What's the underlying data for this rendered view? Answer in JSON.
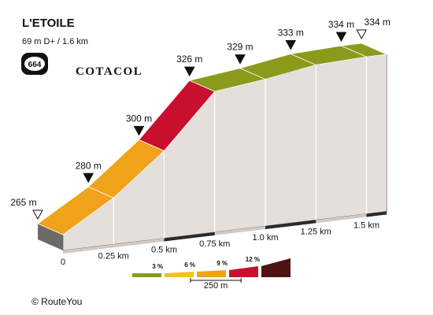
{
  "chart_data": {
    "type": "profile",
    "title": "L'ETOILE",
    "subtitle": "69 m D+ / 1.6 km",
    "badge": "664",
    "brand": "COTACOL",
    "footer": "© RouteYou",
    "x": [
      0,
      0.25,
      0.5,
      0.75,
      1,
      1.25,
      1.5,
      1.6
    ],
    "values": [
      265,
      280,
      300,
      326,
      329,
      333,
      334,
      334
    ],
    "value_labels": [
      "265 m",
      "280 m",
      "300 m",
      "326 m",
      "329 m",
      "333 m",
      "334 m",
      "334 m"
    ],
    "ylim": [
      260,
      340
    ],
    "xlim": [
      0,
      1.6
    ],
    "xticks": [
      0,
      {
        "value": 0.25,
        "label": "0.25 km"
      },
      {
        "value": 0.5,
        "label": "0.5 km"
      },
      {
        "value": 0.75,
        "label": "0.75 km"
      },
      {
        "value": 1,
        "label": "1.0 km"
      },
      {
        "value": 1.25,
        "label": "1.25 km"
      },
      {
        "value": 1.5,
        "label": "1.5 km"
      }
    ],
    "legend": {
      "colors": [
        "#8c9a1b",
        "#f2c21b",
        "#f0a31a",
        "#c8102e",
        "#4e1414"
      ],
      "thresholds": [
        {
          "value": 3,
          "label": "3 %"
        },
        {
          "value": 6,
          "label": "6 %"
        },
        {
          "value": 9,
          "label": "9 %"
        },
        {
          "value": 12,
          "label": "12 %"
        }
      ],
      "scale": {
        "value": 0.25,
        "label": "250 m"
      }
    }
  }
}
